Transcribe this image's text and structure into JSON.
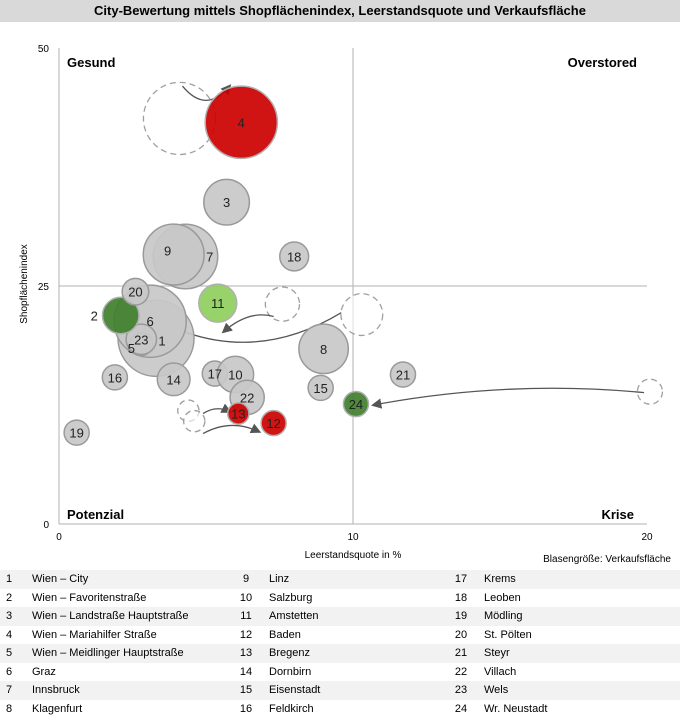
{
  "title": "City-Bewertung mittels Shopflächenindex, Leerstandsquote und Verkaufsfläche",
  "bubble_size_note": "Blasengröße: Verkaufsfläche",
  "quadrants": {
    "top_left": "Gesund",
    "top_right": "Overstored",
    "bottom_left": "Potenzial",
    "bottom_right": "Krise"
  },
  "colors": {
    "grey": "#c8c8c8",
    "grey_stroke": "#9a9a9a",
    "red": "#cc0000",
    "green": "#6aa84f",
    "light_green": "#8fce5e",
    "dark_green": "#3f7f2e",
    "axis": "#b0b0b0",
    "dashed": "#a0a0a0"
  },
  "chart_data": {
    "type": "scatter",
    "variant": "bubble",
    "title": "City-Bewertung mittels Shopflächenindex, Leerstandsquote und Verkaufsfläche",
    "xlabel": "Leerstandsquote in %",
    "ylabel": "Shopflächenindex",
    "xlim": [
      0,
      20
    ],
    "ylim": [
      0,
      50
    ],
    "x_ticks": [
      0,
      10,
      20
    ],
    "y_ticks": [
      0,
      25,
      50
    ],
    "quadrant_split": {
      "x": 10,
      "y": 25
    },
    "grid": false,
    "size_label": "Blasengröße: Verkaufsfläche",
    "points": [
      {
        "id": "1",
        "x": 3.3,
        "y": 19.5,
        "size": 1.0,
        "color": "grey"
      },
      {
        "id": "6",
        "x": 3.1,
        "y": 21.3,
        "size": 0.95,
        "color": "grey"
      },
      {
        "id": "5",
        "x": 2.8,
        "y": 18.9,
        "size": 0.3,
        "color": "grey"
      },
      {
        "id": "23",
        "x": 2.8,
        "y": 19.4,
        "size": 0.4,
        "color": "grey"
      },
      {
        "id": "2",
        "x": 2.1,
        "y": 21.9,
        "size": 0.48,
        "color": "dark_green"
      },
      {
        "id": "20",
        "x": 2.6,
        "y": 24.4,
        "size": 0.35,
        "color": "grey"
      },
      {
        "id": "4",
        "x": 6.2,
        "y": 42.2,
        "size": 0.95,
        "color": "red"
      },
      {
        "id": "3",
        "x": 5.7,
        "y": 33.8,
        "size": 0.6,
        "color": "grey"
      },
      {
        "id": "7",
        "x": 4.3,
        "y": 28.1,
        "size": 0.85,
        "color": "grey"
      },
      {
        "id": "9",
        "x": 3.9,
        "y": 28.3,
        "size": 0.8,
        "color": "grey"
      },
      {
        "id": "18",
        "x": 8.0,
        "y": 28.1,
        "size": 0.38,
        "color": "grey"
      },
      {
        "id": "11",
        "x": 5.4,
        "y": 23.2,
        "size": 0.5,
        "color": "light_green"
      },
      {
        "id": "8",
        "x": 9.0,
        "y": 18.4,
        "size": 0.65,
        "color": "grey"
      },
      {
        "id": "21",
        "x": 11.7,
        "y": 15.7,
        "size": 0.33,
        "color": "grey"
      },
      {
        "id": "15",
        "x": 8.9,
        "y": 14.3,
        "size": 0.33,
        "color": "grey"
      },
      {
        "id": "24",
        "x": 10.1,
        "y": 12.6,
        "size": 0.33,
        "color": "dark_green"
      },
      {
        "id": "16",
        "x": 1.9,
        "y": 15.4,
        "size": 0.33,
        "color": "grey"
      },
      {
        "id": "14",
        "x": 3.9,
        "y": 15.2,
        "size": 0.43,
        "color": "grey"
      },
      {
        "id": "17",
        "x": 5.3,
        "y": 15.8,
        "size": 0.33,
        "color": "grey"
      },
      {
        "id": "10",
        "x": 6.0,
        "y": 15.7,
        "size": 0.48,
        "color": "grey"
      },
      {
        "id": "22",
        "x": 6.4,
        "y": 13.3,
        "size": 0.45,
        "color": "grey"
      },
      {
        "id": "13",
        "x": 6.1,
        "y": 11.6,
        "size": 0.28,
        "color": "red"
      },
      {
        "id": "12",
        "x": 7.3,
        "y": 10.6,
        "size": 0.33,
        "color": "red"
      },
      {
        "id": "19",
        "x": 0.6,
        "y": 9.6,
        "size": 0.33,
        "color": "grey"
      }
    ],
    "previous_positions": [
      {
        "id": "4",
        "x": 4.1,
        "y": 42.6,
        "size": 0.95
      },
      {
        "id": "11",
        "x": 7.6,
        "y": 23.1,
        "size": 0.45
      },
      {
        "id": "24",
        "x": 20.1,
        "y": 13.9,
        "size": 0.33
      },
      {
        "id": "8b",
        "x": 10.3,
        "y": 22.0,
        "size": 0.55
      },
      {
        "id": "13",
        "x": 4.4,
        "y": 11.9,
        "size": 0.28
      },
      {
        "id": "12",
        "x": 4.6,
        "y": 10.8,
        "size": 0.28
      }
    ],
    "arrows": [
      {
        "from": [
          4.2,
          46.0
        ],
        "to": [
          5.8,
          46.0
        ],
        "bend": -3
      },
      {
        "from": [
          7.3,
          21.8
        ],
        "to": [
          5.6,
          20.2
        ],
        "bend": 1.5
      },
      {
        "from": [
          19.9,
          13.8
        ],
        "to": [
          10.7,
          12.5
        ],
        "bend": 2
      },
      {
        "from": [
          9.6,
          22.2
        ],
        "to": [
          2.5,
          23.0
        ],
        "bend": -7
      },
      {
        "from": [
          4.9,
          11.6
        ],
        "to": [
          5.8,
          11.8
        ],
        "bend": 0.8
      },
      {
        "from": [
          4.9,
          9.5
        ],
        "to": [
          6.8,
          9.7
        ],
        "bend": 1.5
      }
    ]
  },
  "city_list": [
    {
      "num": "1",
      "name": "Wien – City"
    },
    {
      "num": "2",
      "name": "Wien – Favoritenstraße"
    },
    {
      "num": "3",
      "name": "Wien – Landstraße Hauptstraße"
    },
    {
      "num": "4",
      "name": "Wien – Mariahilfer Straße"
    },
    {
      "num": "5",
      "name": "Wien – Meidlinger Hauptstraße"
    },
    {
      "num": "6",
      "name": "Graz"
    },
    {
      "num": "7",
      "name": "Innsbruck"
    },
    {
      "num": "8",
      "name": "Klagenfurt"
    },
    {
      "num": "9",
      "name": "Linz"
    },
    {
      "num": "10",
      "name": "Salzburg"
    },
    {
      "num": "11",
      "name": "Amstetten"
    },
    {
      "num": "12",
      "name": "Baden"
    },
    {
      "num": "13",
      "name": "Bregenz"
    },
    {
      "num": "14",
      "name": "Dornbirn"
    },
    {
      "num": "15",
      "name": "Eisenstadt"
    },
    {
      "num": "16",
      "name": "Feldkirch"
    },
    {
      "num": "17",
      "name": "Krems"
    },
    {
      "num": "18",
      "name": "Leoben"
    },
    {
      "num": "19",
      "name": "Mödling"
    },
    {
      "num": "20",
      "name": "St. Pölten"
    },
    {
      "num": "21",
      "name": "Steyr"
    },
    {
      "num": "22",
      "name": "Villach"
    },
    {
      "num": "23",
      "name": "Wels"
    },
    {
      "num": "24",
      "name": "Wr. Neustadt"
    }
  ]
}
